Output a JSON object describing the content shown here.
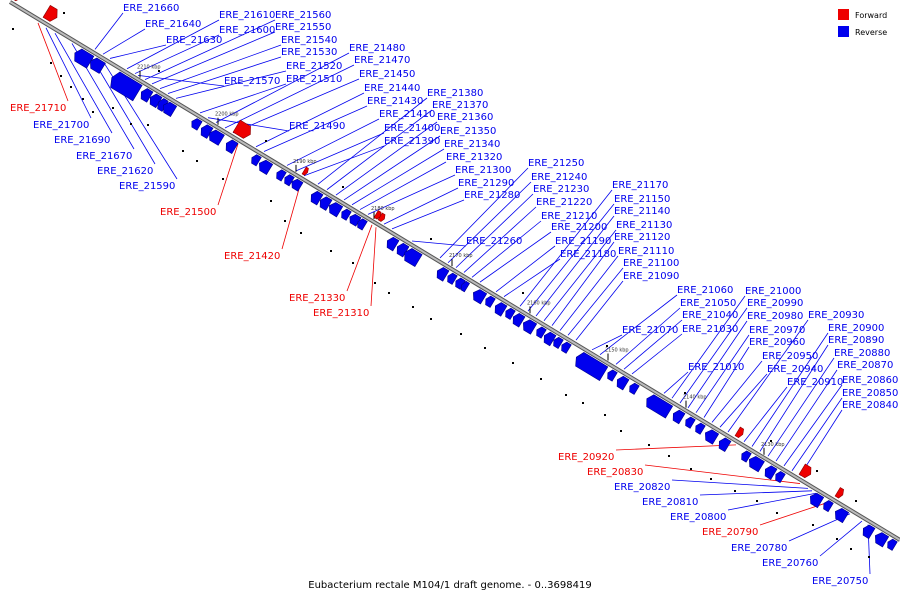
{
  "caption": "Eubacterium rectale M104/1 draft genome. - 0..3698419",
  "legend": {
    "forward": {
      "label": "Forward",
      "color": "#ee0000"
    },
    "reverse": {
      "label": "Reverse",
      "color": "#0000ee"
    }
  },
  "colors": {
    "axis": "#999999",
    "axis_edge": "#555555",
    "forward": "#ee0000",
    "reverse": "#0000ee",
    "reverse_dark": "#00008b",
    "forward_dark": "#8b0000"
  },
  "kbp_ticks": [
    "2210 kbp",
    "2200 kbp",
    "2190 kbp",
    "2180 kbp",
    "2170 kbp",
    "2160 kbp",
    "2150 kbp",
    "2140 kbp",
    "2130 kbp"
  ],
  "genes": [
    {
      "id": "ERE_21710",
      "strand": "forward"
    },
    {
      "id": "ERE_21700",
      "strand": "reverse"
    },
    {
      "id": "ERE_21690",
      "strand": "reverse"
    },
    {
      "id": "ERE_21670",
      "strand": "reverse"
    },
    {
      "id": "ERE_21660",
      "strand": "reverse"
    },
    {
      "id": "ERE_21640",
      "strand": "reverse"
    },
    {
      "id": "ERE_21630",
      "strand": "reverse"
    },
    {
      "id": "ERE_21620",
      "strand": "reverse"
    },
    {
      "id": "ERE_21610",
      "strand": "reverse"
    },
    {
      "id": "ERE_21600",
      "strand": "reverse"
    },
    {
      "id": "ERE_21590",
      "strand": "reverse"
    },
    {
      "id": "ERE_21570",
      "strand": "reverse"
    },
    {
      "id": "ERE_21560",
      "strand": "reverse"
    },
    {
      "id": "ERE_21550",
      "strand": "reverse"
    },
    {
      "id": "ERE_21540",
      "strand": "reverse"
    },
    {
      "id": "ERE_21530",
      "strand": "reverse"
    },
    {
      "id": "ERE_21520",
      "strand": "reverse"
    },
    {
      "id": "ERE_21510",
      "strand": "reverse"
    },
    {
      "id": "ERE_21500",
      "strand": "forward"
    },
    {
      "id": "ERE_21490",
      "strand": "reverse"
    },
    {
      "id": "ERE_21480",
      "strand": "reverse"
    },
    {
      "id": "ERE_21470",
      "strand": "reverse"
    },
    {
      "id": "ERE_21450",
      "strand": "reverse"
    },
    {
      "id": "ERE_21440",
      "strand": "reverse"
    },
    {
      "id": "ERE_21430",
      "strand": "reverse"
    },
    {
      "id": "ERE_21420",
      "strand": "forward"
    },
    {
      "id": "ERE_21410",
      "strand": "reverse"
    },
    {
      "id": "ERE_21400",
      "strand": "reverse"
    },
    {
      "id": "ERE_21390",
      "strand": "reverse"
    },
    {
      "id": "ERE_21380",
      "strand": "reverse"
    },
    {
      "id": "ERE_21370",
      "strand": "reverse"
    },
    {
      "id": "ERE_21360",
      "strand": "reverse"
    },
    {
      "id": "ERE_21350",
      "strand": "reverse"
    },
    {
      "id": "ERE_21340",
      "strand": "reverse"
    },
    {
      "id": "ERE_21330",
      "strand": "forward"
    },
    {
      "id": "ERE_21320",
      "strand": "reverse"
    },
    {
      "id": "ERE_21310",
      "strand": "forward"
    },
    {
      "id": "ERE_21300",
      "strand": "reverse"
    },
    {
      "id": "ERE_21290",
      "strand": "reverse"
    },
    {
      "id": "ERE_21280",
      "strand": "reverse"
    },
    {
      "id": "ERE_21260",
      "strand": "reverse"
    },
    {
      "id": "ERE_21250",
      "strand": "reverse"
    },
    {
      "id": "ERE_21240",
      "strand": "reverse"
    },
    {
      "id": "ERE_21230",
      "strand": "reverse"
    },
    {
      "id": "ERE_21220",
      "strand": "reverse"
    },
    {
      "id": "ERE_21210",
      "strand": "reverse"
    },
    {
      "id": "ERE_21200",
      "strand": "reverse"
    },
    {
      "id": "ERE_21190",
      "strand": "reverse"
    },
    {
      "id": "ERE_21180",
      "strand": "reverse"
    },
    {
      "id": "ERE_21170",
      "strand": "reverse"
    },
    {
      "id": "ERE_21150",
      "strand": "reverse"
    },
    {
      "id": "ERE_21140",
      "strand": "reverse"
    },
    {
      "id": "ERE_21130",
      "strand": "reverse"
    },
    {
      "id": "ERE_21120",
      "strand": "reverse"
    },
    {
      "id": "ERE_21110",
      "strand": "reverse"
    },
    {
      "id": "ERE_21100",
      "strand": "reverse"
    },
    {
      "id": "ERE_21090",
      "strand": "reverse"
    },
    {
      "id": "ERE_21070",
      "strand": "reverse"
    },
    {
      "id": "ERE_21060",
      "strand": "reverse"
    },
    {
      "id": "ERE_21050",
      "strand": "reverse"
    },
    {
      "id": "ERE_21040",
      "strand": "reverse"
    },
    {
      "id": "ERE_21030",
      "strand": "reverse"
    },
    {
      "id": "ERE_21010",
      "strand": "reverse"
    },
    {
      "id": "ERE_21000",
      "strand": "reverse"
    },
    {
      "id": "ERE_20990",
      "strand": "reverse"
    },
    {
      "id": "ERE_20980",
      "strand": "reverse"
    },
    {
      "id": "ERE_20970",
      "strand": "reverse"
    },
    {
      "id": "ERE_20960",
      "strand": "reverse"
    },
    {
      "id": "ERE_20950",
      "strand": "reverse"
    },
    {
      "id": "ERE_20940",
      "strand": "reverse"
    },
    {
      "id": "ERE_20930",
      "strand": "reverse"
    },
    {
      "id": "ERE_20920",
      "strand": "forward"
    },
    {
      "id": "ERE_20910",
      "strand": "reverse"
    },
    {
      "id": "ERE_20900",
      "strand": "reverse"
    },
    {
      "id": "ERE_20890",
      "strand": "reverse"
    },
    {
      "id": "ERE_20880",
      "strand": "reverse"
    },
    {
      "id": "ERE_20870",
      "strand": "reverse"
    },
    {
      "id": "ERE_20860",
      "strand": "reverse"
    },
    {
      "id": "ERE_20850",
      "strand": "reverse"
    },
    {
      "id": "ERE_20840",
      "strand": "reverse"
    },
    {
      "id": "ERE_20830",
      "strand": "forward"
    },
    {
      "id": "ERE_20820",
      "strand": "reverse"
    },
    {
      "id": "ERE_20810",
      "strand": "reverse"
    },
    {
      "id": "ERE_20800",
      "strand": "reverse"
    },
    {
      "id": "ERE_20790",
      "strand": "forward"
    },
    {
      "id": "ERE_20780",
      "strand": "reverse"
    },
    {
      "id": "ERE_20760",
      "strand": "reverse"
    },
    {
      "id": "ERE_20750",
      "strand": "reverse"
    }
  ]
}
